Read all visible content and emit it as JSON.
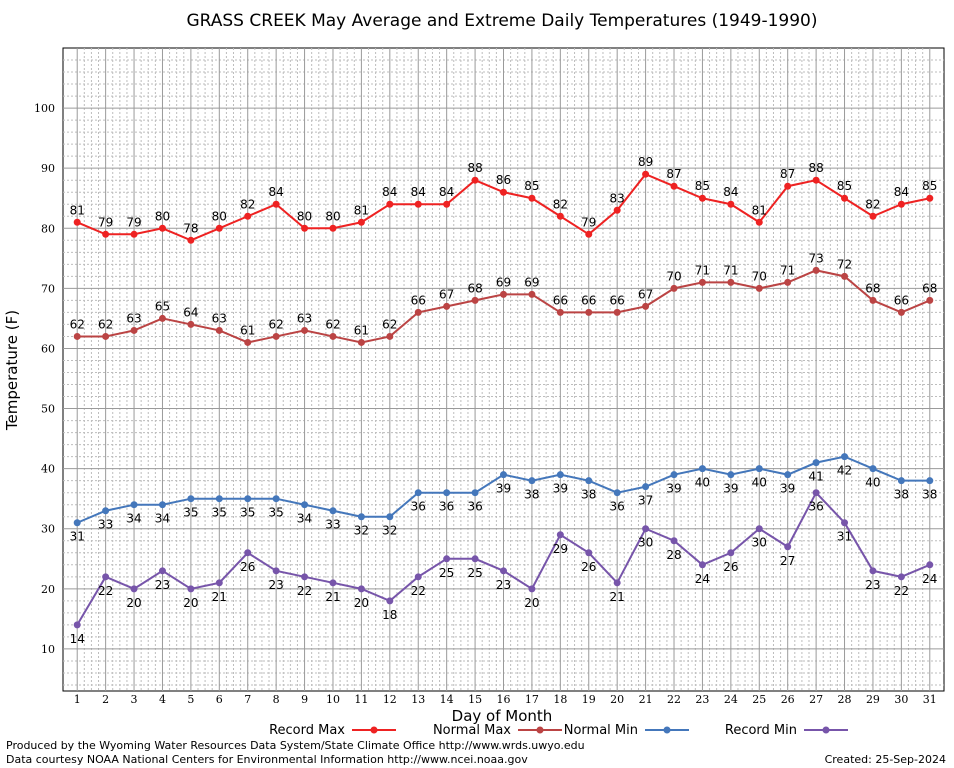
{
  "chart_data": {
    "type": "line",
    "title": "GRASS CREEK May Average and Extreme Daily Temperatures (1949-1990)",
    "xlabel": "Day of Month",
    "ylabel": "Temperature (F)",
    "x": [
      1,
      2,
      3,
      4,
      5,
      6,
      7,
      8,
      9,
      10,
      11,
      12,
      13,
      14,
      15,
      16,
      17,
      18,
      19,
      20,
      21,
      22,
      23,
      24,
      25,
      26,
      27,
      28,
      29,
      30,
      31
    ],
    "xlim": [
      0.5,
      31.5
    ],
    "ylim": [
      3,
      110
    ],
    "yticks": [
      10,
      20,
      30,
      40,
      50,
      60,
      70,
      80,
      90,
      100
    ],
    "grid": true,
    "legend_position": "bottom",
    "series": [
      {
        "name": "Record Max",
        "color": "#ee2222",
        "label_position": "above",
        "values": [
          81,
          79,
          79,
          80,
          78,
          80,
          82,
          84,
          80,
          80,
          81,
          84,
          84,
          84,
          88,
          86,
          85,
          82,
          79,
          83,
          89,
          87,
          85,
          84,
          81,
          87,
          88,
          85,
          82,
          84,
          85
        ]
      },
      {
        "name": "Normal Max",
        "color": "#bb4444",
        "label_position": "above",
        "values": [
          62,
          62,
          63,
          65,
          64,
          63,
          61,
          62,
          63,
          62,
          61,
          62,
          66,
          67,
          68,
          69,
          69,
          66,
          66,
          66,
          67,
          70,
          71,
          71,
          70,
          71,
          73,
          72,
          68,
          66,
          68
        ]
      },
      {
        "name": "Normal Min",
        "color": "#4477bb",
        "label_position": "below",
        "values": [
          31,
          33,
          34,
          34,
          35,
          35,
          35,
          35,
          34,
          33,
          32,
          32,
          36,
          36,
          36,
          39,
          38,
          39,
          38,
          36,
          37,
          39,
          40,
          39,
          40,
          39,
          41,
          42,
          40,
          38,
          38
        ]
      },
      {
        "name": "Record Min",
        "color": "#7755aa",
        "label_position": "below",
        "values": [
          14,
          22,
          20,
          23,
          20,
          21,
          26,
          23,
          22,
          21,
          20,
          18,
          22,
          25,
          25,
          23,
          20,
          29,
          26,
          21,
          30,
          28,
          24,
          26,
          30,
          27,
          36,
          31,
          23,
          22,
          24
        ]
      }
    ]
  },
  "footer": {
    "produced_by": "Produced by the Wyoming Water Resources Data System/State Climate Office http://www.wrds.uwyo.edu",
    "courtesy": "Data courtesy NOAA National Centers for Environmental Information http://www.ncei.noaa.gov",
    "created": "Created:  25-Sep-2024"
  }
}
